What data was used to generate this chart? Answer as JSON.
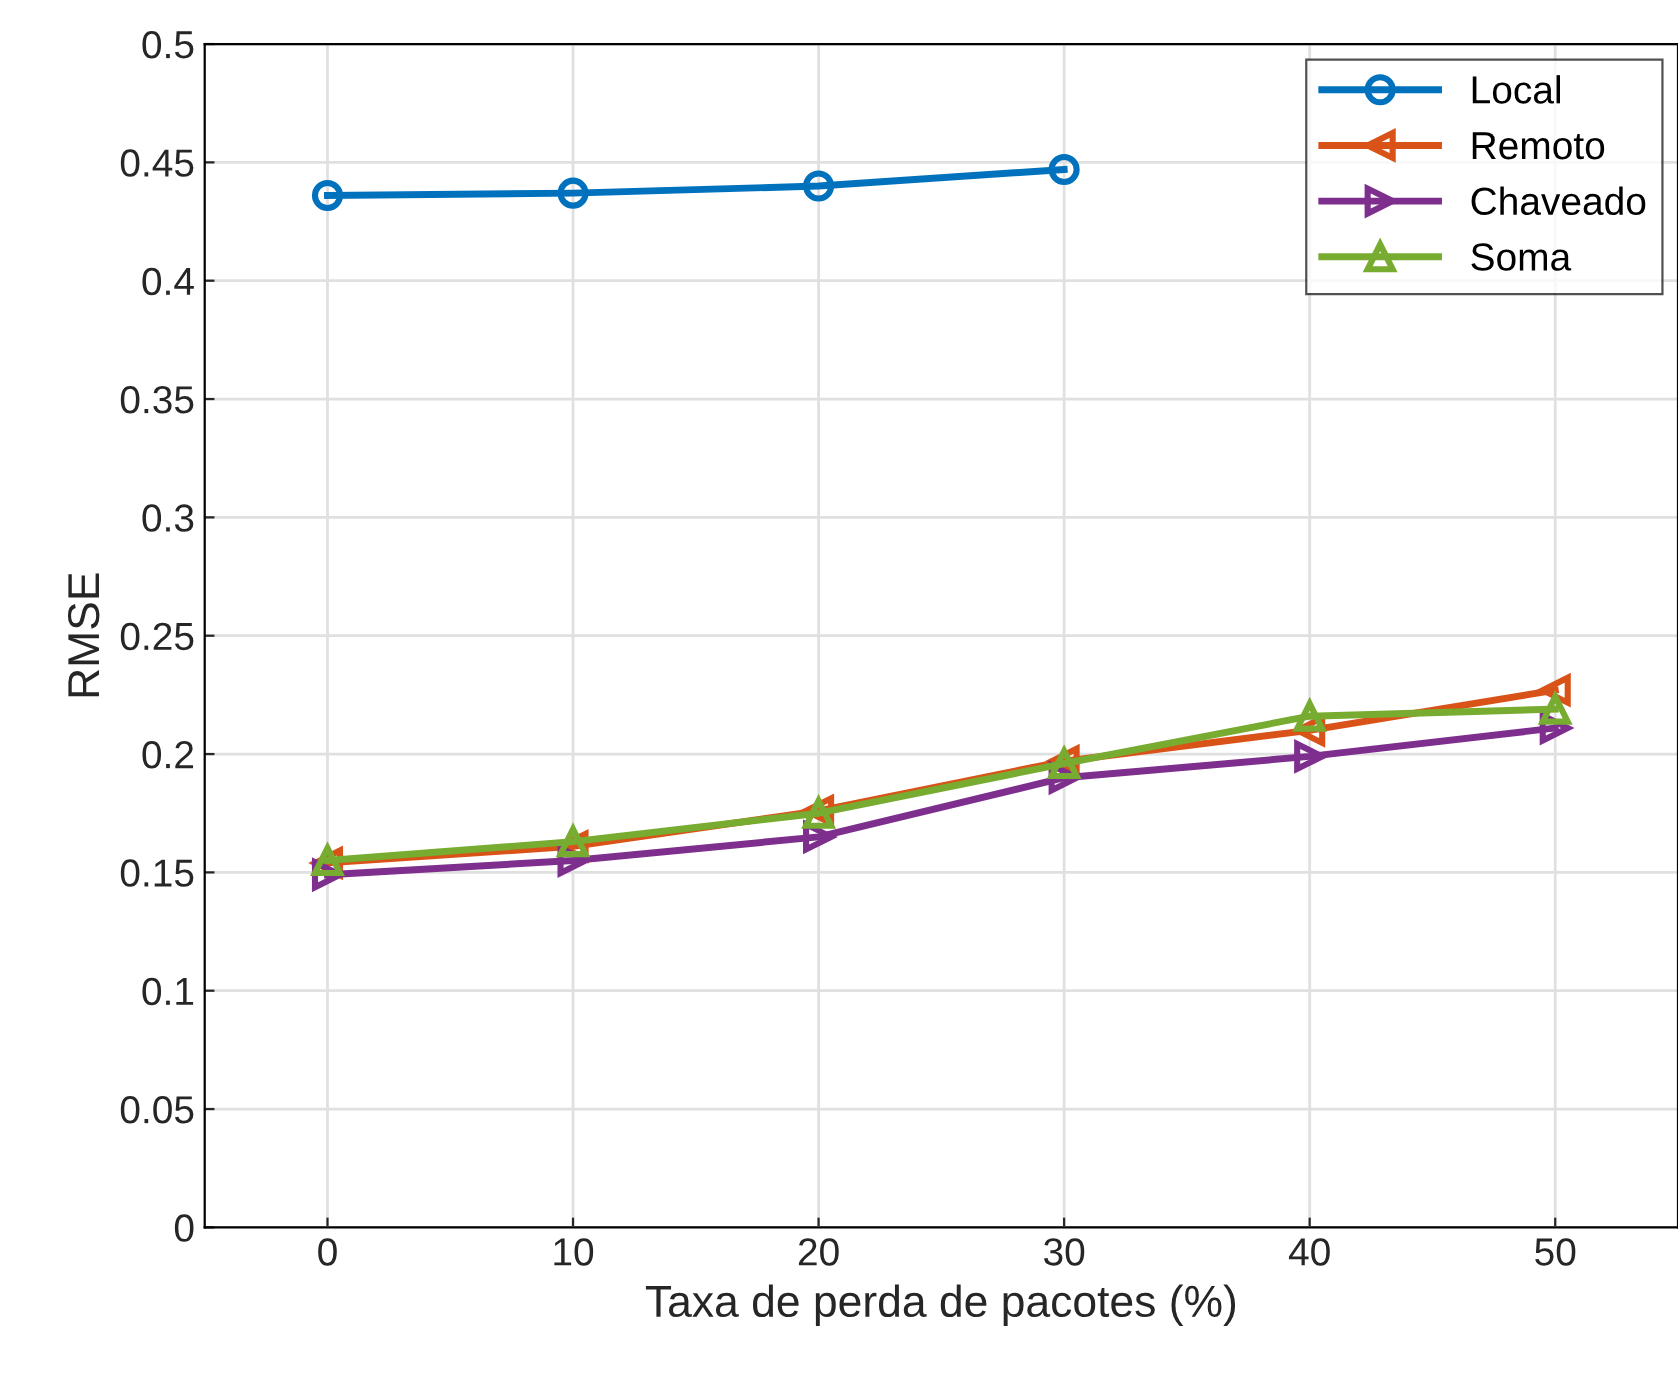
{
  "chart_data": {
    "type": "line",
    "xlabel": "Taxa de perda de pacotes (%)",
    "ylabel": "RMSE",
    "x": [
      0,
      10,
      20,
      30,
      40,
      50
    ],
    "series": [
      {
        "name": "Local",
        "color": "#0072bd",
        "marker": "circle",
        "values": [
          0.436,
          0.437,
          0.44,
          0.447,
          null,
          null
        ]
      },
      {
        "name": "Remoto",
        "color": "#d95319",
        "marker": "triangle-left",
        "values": [
          0.154,
          0.161,
          0.176,
          0.197,
          0.21,
          0.227
        ]
      },
      {
        "name": "Chaveado",
        "color": "#7e2f8e",
        "marker": "triangle-right",
        "values": [
          0.149,
          0.155,
          0.165,
          0.19,
          0.199,
          0.211
        ]
      },
      {
        "name": "Soma",
        "color": "#77ac30",
        "marker": "triangle",
        "values": [
          0.155,
          0.163,
          0.175,
          0.196,
          0.216,
          0.219
        ]
      }
    ],
    "xlim": [
      -5,
      55
    ],
    "xticks": [
      0,
      10,
      20,
      30,
      40,
      50
    ],
    "ylim": [
      0,
      0.5
    ],
    "yticks": [
      0,
      0.05,
      0.1,
      0.15,
      0.2,
      0.25,
      0.3,
      0.35,
      0.4,
      0.45,
      0.5
    ],
    "grid": true,
    "legend": "top right",
    "line_style": "solid"
  }
}
